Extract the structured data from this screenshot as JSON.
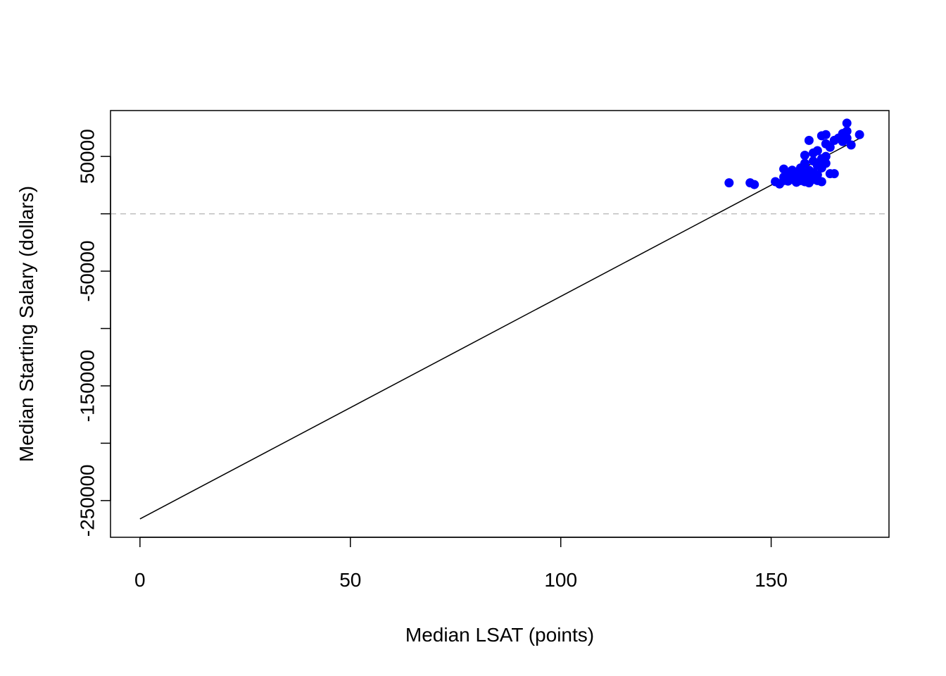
{
  "chart_data": {
    "type": "scatter",
    "title": "",
    "xlabel": "Median LSAT (points)",
    "ylabel": "Median Starting Salary (dollars)",
    "xlim": [
      -7,
      178
    ],
    "ylim": [
      -282000,
      90000
    ],
    "x_ticks": [
      0,
      50,
      100,
      150
    ],
    "y_ticks": [
      50000,
      0,
      -50000,
      -100000,
      -150000,
      -200000,
      -250000
    ],
    "y_tick_labels": [
      "50000",
      "",
      "-50000",
      "",
      "-150000",
      "",
      "-250000"
    ],
    "grid": false,
    "reference_line": {
      "y": 0,
      "style": "dashed",
      "color": "#bdbdbd"
    },
    "regression_line": {
      "intercept": -266000,
      "slope": 1940,
      "x_range": [
        0,
        171
      ]
    },
    "colors": {
      "points": "#0000ff",
      "line": "#000000",
      "axis": "#000000"
    },
    "points": [
      [
        140,
        27000
      ],
      [
        145,
        27000
      ],
      [
        146,
        25500
      ],
      [
        151,
        28000
      ],
      [
        152,
        26000
      ],
      [
        153,
        29000
      ],
      [
        153,
        32000
      ],
      [
        153,
        39000
      ],
      [
        154,
        28500
      ],
      [
        154,
        35000
      ],
      [
        155,
        30000
      ],
      [
        155,
        38000
      ],
      [
        155,
        33000
      ],
      [
        156,
        27500
      ],
      [
        156,
        31000
      ],
      [
        156,
        36000
      ],
      [
        157,
        29000
      ],
      [
        157,
        33000
      ],
      [
        157,
        40000
      ],
      [
        158,
        28000
      ],
      [
        158,
        35000
      ],
      [
        158,
        44000
      ],
      [
        158,
        51000
      ],
      [
        159,
        27000
      ],
      [
        159,
        32000
      ],
      [
        159,
        38000
      ],
      [
        159,
        64000
      ],
      [
        160,
        30000
      ],
      [
        160,
        36000
      ],
      [
        160,
        46000
      ],
      [
        160,
        53000
      ],
      [
        161,
        29000
      ],
      [
        161,
        34000
      ],
      [
        161,
        42000
      ],
      [
        161,
        55000
      ],
      [
        162,
        28000
      ],
      [
        162,
        40000
      ],
      [
        162,
        48000
      ],
      [
        162,
        68000
      ],
      [
        163,
        44000
      ],
      [
        163,
        50000
      ],
      [
        163,
        61000
      ],
      [
        163,
        69000
      ],
      [
        164,
        35000
      ],
      [
        164,
        58000
      ],
      [
        165,
        35000
      ],
      [
        165,
        64000
      ],
      [
        166,
        66000
      ],
      [
        167,
        63000
      ],
      [
        167,
        70000
      ],
      [
        168,
        79000
      ],
      [
        168,
        72000
      ],
      [
        168,
        66000
      ],
      [
        169,
        60000
      ],
      [
        171,
        69000
      ]
    ]
  }
}
